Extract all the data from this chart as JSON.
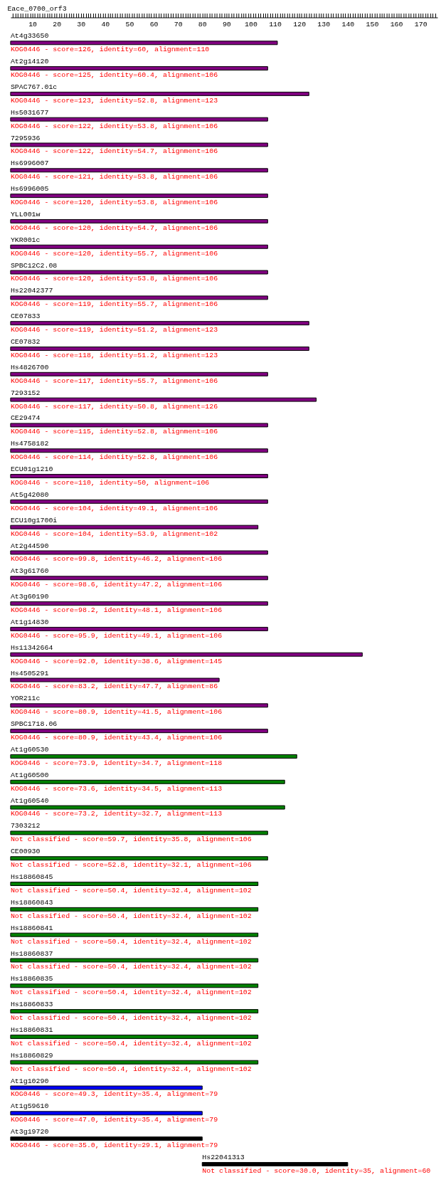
{
  "chart_data": {
    "type": "bar",
    "orientation": "horizontal",
    "title": "Eace_0700_orf3",
    "categories": [
      "At4g33650",
      "At2g14120",
      "SPAC767.01c",
      "Hs5031677",
      "7295936",
      "Hs6996007",
      "Hs6996005",
      "YLL001w",
      "YKR001c",
      "SPBC12C2.08",
      "Hs22042377",
      "CE07833",
      "CE07832",
      "Hs4826700",
      "7293152",
      "CE29474",
      "Hs4758182",
      "ECU01g1210",
      "At5g42080",
      "ECU10g1700i",
      "At2g44590",
      "At3g61760",
      "At3g60190",
      "At1g14830",
      "Hs11342664",
      "Hs4505291",
      "YOR211c",
      "SPBC1718.06",
      "At1g60530",
      "At1g60500",
      "At1g60540",
      "7303212",
      "CE00930",
      "Hs18860845",
      "Hs18860843",
      "Hs18860841",
      "Hs18860837",
      "Hs18860835",
      "Hs18860833",
      "Hs18860831",
      "Hs18860829",
      "At1g10290",
      "At1g59610",
      "At3g19720",
      "Hs22041313"
    ],
    "base": [
      1,
      1,
      1,
      1,
      1,
      1,
      1,
      1,
      1,
      1,
      1,
      1,
      1,
      1,
      1,
      1,
      1,
      1,
      1,
      1,
      1,
      1,
      1,
      1,
      1,
      1,
      1,
      1,
      1,
      1,
      1,
      1,
      1,
      1,
      1,
      1,
      1,
      1,
      1,
      1,
      1,
      1,
      1,
      1,
      80
    ],
    "values": [
      110,
      106,
      123,
      106,
      106,
      106,
      106,
      106,
      106,
      106,
      106,
      123,
      123,
      106,
      126,
      106,
      106,
      106,
      106,
      102,
      106,
      106,
      106,
      106,
      145,
      86,
      106,
      106,
      118,
      113,
      113,
      106,
      106,
      102,
      102,
      102,
      102,
      102,
      102,
      102,
      102,
      79,
      79,
      79,
      60
    ],
    "colors": [
      "#800080",
      "#800080",
      "#800080",
      "#800080",
      "#800080",
      "#800080",
      "#800080",
      "#800080",
      "#800080",
      "#800080",
      "#800080",
      "#800080",
      "#800080",
      "#800080",
      "#800080",
      "#800080",
      "#800080",
      "#800080",
      "#800080",
      "#800080",
      "#800080",
      "#800080",
      "#800080",
      "#800080",
      "#800080",
      "#800080",
      "#800080",
      "#800080",
      "#008000",
      "#008000",
      "#008000",
      "#008000",
      "#008000",
      "#008000",
      "#008000",
      "#008000",
      "#008000",
      "#008000",
      "#008000",
      "#008000",
      "#008000",
      "#0000ff",
      "#0000ff",
      "#000000",
      "#000000"
    ],
    "value_labels": [
      "KOG0446 - score=126, identity=60, alignment=110",
      "KOG0446 - score=125, identity=60.4, alignment=106",
      "KOG0446 - score=123, identity=52.8, alignment=123",
      "KOG0446 - score=122, identity=53.8, alignment=106",
      "KOG0446 - score=122, identity=54.7, alignment=106",
      "KOG0446 - score=121, identity=53.8, alignment=106",
      "KOG0446 - score=120, identity=53.8, alignment=106",
      "KOG0446 - score=120, identity=54.7, alignment=106",
      "KOG0446 - score=120, identity=55.7, alignment=106",
      "KOG0446 - score=120, identity=53.8, alignment=106",
      "KOG0446 - score=119, identity=55.7, alignment=106",
      "KOG0446 - score=119, identity=51.2, alignment=123",
      "KOG0446 - score=118, identity=51.2, alignment=123",
      "KOG0446 - score=117, identity=55.7, alignment=106",
      "KOG0446 - score=117, identity=50.8, alignment=126",
      "KOG0446 - score=115, identity=52.8, alignment=106",
      "KOG0446 - score=114, identity=52.8, alignment=106",
      "KOG0446 - score=110, identity=50, alignment=106",
      "KOG0446 - score=104, identity=49.1, alignment=106",
      "KOG0446 - score=104, identity=53.9, alignment=102",
      "KOG0446 - score=99.8, identity=46.2, alignment=106",
      "KOG0446 - score=98.6, identity=47.2, alignment=106",
      "KOG0446 - score=98.2, identity=48.1, alignment=106",
      "KOG0446 - score=95.9, identity=49.1, alignment=106",
      "KOG0446 - score=92.0, identity=38.6, alignment=145",
      "KOG0446 - score=83.2, identity=47.7, alignment=86",
      "KOG0446 - score=80.9, identity=41.5, alignment=106",
      "KOG0446 - score=80.9, identity=43.4, alignment=106",
      "KOG0446 - score=73.9, identity=34.7, alignment=118",
      "KOG0446 - score=73.6, identity=34.5, alignment=113",
      "KOG0446 - score=73.2, identity=32.7, alignment=113",
      "Not classified - score=59.7, identity=35.8, alignment=106",
      "Not classified - score=52.8, identity=32.1, alignment=106",
      "Not classified - score=50.4, identity=32.4, alignment=102",
      "Not classified - score=50.4, identity=32.4, alignment=102",
      "Not classified - score=50.4, identity=32.4, alignment=102",
      "Not classified - score=50.4, identity=32.4, alignment=102",
      "Not classified - score=50.4, identity=32.4, alignment=102",
      "Not classified - score=50.4, identity=32.4, alignment=102",
      "Not classified - score=50.4, identity=32.4, alignment=102",
      "Not classified - score=50.4, identity=32.4, alignment=102",
      "KOG0446 - score=49.3, identity=35.4, alignment=79",
      "KOG0446 - score=47.0, identity=35.4, alignment=79",
      "KOG0446 - score=35.0, identity=29.1, alignment=79",
      "Not classified - score=30.0, identity=35, alignment=60"
    ],
    "xlim": [
      1,
      177
    ],
    "xticks": [
      {
        "value": 2,
        "label": null
      },
      {
        "value": 3,
        "label": null
      },
      {
        "value": 4,
        "label": null
      },
      {
        "value": 5,
        "label": null
      },
      {
        "value": 6,
        "label": null
      },
      {
        "value": 7,
        "label": null
      },
      {
        "value": 8,
        "label": null
      },
      {
        "value": 9,
        "label": null
      },
      10,
      {
        "value": 11,
        "label": null
      },
      {
        "value": 12,
        "label": null
      },
      {
        "value": 13,
        "label": null
      },
      {
        "value": 14,
        "label": null
      },
      {
        "value": 15,
        "label": null
      },
      {
        "value": 16,
        "label": null
      },
      {
        "value": 17,
        "label": null
      },
      {
        "value": 18,
        "label": null
      },
      {
        "value": 19,
        "label": null
      },
      20,
      {
        "value": 21,
        "label": null
      },
      {
        "value": 22,
        "label": null
      },
      {
        "value": 23,
        "label": null
      },
      {
        "value": 24,
        "label": null
      },
      {
        "value": 25,
        "label": null
      },
      {
        "value": 26,
        "label": null
      },
      {
        "value": 27,
        "label": null
      },
      {
        "value": 28,
        "label": null
      },
      {
        "value": 29,
        "label": null
      },
      30,
      {
        "value": 31,
        "label": null
      },
      {
        "value": 32,
        "label": null
      },
      {
        "value": 33,
        "label": null
      },
      {
        "value": 34,
        "label": null
      },
      {
        "value": 35,
        "label": null
      },
      {
        "value": 36,
        "label": null
      },
      {
        "value": 37,
        "label": null
      },
      {
        "value": 38,
        "label": null
      },
      {
        "value": 39,
        "label": null
      },
      40,
      {
        "value": 41,
        "label": null
      },
      {
        "value": 42,
        "label": null
      },
      {
        "value": 43,
        "label": null
      },
      {
        "value": 44,
        "label": null
      },
      {
        "value": 45,
        "label": null
      },
      {
        "value": 46,
        "label": null
      },
      {
        "value": 47,
        "label": null
      },
      {
        "value": 48,
        "label": null
      },
      {
        "value": 49,
        "label": null
      },
      50,
      {
        "value": 51,
        "label": null
      },
      {
        "value": 52,
        "label": null
      },
      {
        "value": 53,
        "label": null
      },
      {
        "value": 54,
        "label": null
      },
      {
        "value": 55,
        "label": null
      },
      {
        "value": 56,
        "label": null
      },
      {
        "value": 57,
        "label": null
      },
      {
        "value": 58,
        "label": null
      },
      {
        "value": 59,
        "label": null
      },
      60,
      {
        "value": 61,
        "label": null
      },
      {
        "value": 62,
        "label": null
      },
      {
        "value": 63,
        "label": null
      },
      {
        "value": 64,
        "label": null
      },
      {
        "value": 65,
        "label": null
      },
      {
        "value": 66,
        "label": null
      },
      {
        "value": 67,
        "label": null
      },
      {
        "value": 68,
        "label": null
      },
      {
        "value": 69,
        "label": null
      },
      70,
      {
        "value": 71,
        "label": null
      },
      {
        "value": 72,
        "label": null
      },
      {
        "value": 73,
        "label": null
      },
      {
        "value": 74,
        "label": null
      },
      {
        "value": 75,
        "label": null
      },
      {
        "value": 76,
        "label": null
      },
      {
        "value": 77,
        "label": null
      },
      {
        "value": 78,
        "label": null
      },
      {
        "value": 79,
        "label": null
      },
      80,
      {
        "value": 81,
        "label": null
      },
      {
        "value": 82,
        "label": null
      },
      {
        "value": 83,
        "label": null
      },
      {
        "value": 84,
        "label": null
      },
      {
        "value": 85,
        "label": null
      },
      {
        "value": 86,
        "label": null
      },
      {
        "value": 87,
        "label": null
      },
      {
        "value": 88,
        "label": null
      },
      {
        "value": 89,
        "label": null
      },
      90,
      {
        "value": 91,
        "label": null
      },
      {
        "value": 92,
        "label": null
      },
      {
        "value": 93,
        "label": null
      },
      {
        "value": 94,
        "label": null
      },
      {
        "value": 95,
        "label": null
      },
      {
        "value": 96,
        "label": null
      },
      {
        "value": 97,
        "label": null
      },
      {
        "value": 98,
        "label": null
      },
      {
        "value": 99,
        "label": null
      },
      100,
      {
        "value": 101,
        "label": null
      },
      {
        "value": 102,
        "label": null
      },
      {
        "value": 103,
        "label": null
      },
      {
        "value": 104,
        "label": null
      },
      {
        "value": 105,
        "label": null
      },
      {
        "value": 106,
        "label": null
      },
      {
        "value": 107,
        "label": null
      },
      {
        "value": 108,
        "label": null
      },
      {
        "value": 109,
        "label": null
      },
      110,
      {
        "value": 111,
        "label": null
      },
      {
        "value": 112,
        "label": null
      },
      {
        "value": 113,
        "label": null
      },
      {
        "value": 114,
        "label": null
      },
      {
        "value": 115,
        "label": null
      },
      {
        "value": 116,
        "label": null
      },
      {
        "value": 117,
        "label": null
      },
      {
        "value": 118,
        "label": null
      },
      {
        "value": 119,
        "label": null
      },
      120,
      {
        "value": 121,
        "label": null
      },
      {
        "value": 122,
        "label": null
      },
      {
        "value": 123,
        "label": null
      },
      {
        "value": 124,
        "label": null
      },
      {
        "value": 125,
        "label": null
      },
      {
        "value": 126,
        "label": null
      },
      {
        "value": 127,
        "label": null
      },
      {
        "value": 128,
        "label": null
      },
      {
        "value": 129,
        "label": null
      },
      130,
      {
        "value": 131,
        "label": null
      },
      {
        "value": 132,
        "label": null
      },
      {
        "value": 133,
        "label": null
      },
      {
        "value": 134,
        "label": null
      },
      {
        "value": 135,
        "label": null
      },
      {
        "value": 136,
        "label": null
      },
      {
        "value": 137,
        "label": null
      },
      {
        "value": 138,
        "label": null
      },
      {
        "value": 139,
        "label": null
      },
      140,
      {
        "value": 141,
        "label": null
      },
      {
        "value": 142,
        "label": null
      },
      {
        "value": 143,
        "label": null
      },
      {
        "value": 144,
        "label": null
      },
      {
        "value": 145,
        "label": null
      },
      {
        "value": 146,
        "label": null
      },
      {
        "value": 147,
        "label": null
      },
      {
        "value": 148,
        "label": null
      },
      {
        "value": 149,
        "label": null
      },
      150,
      {
        "value": 151,
        "label": null
      },
      {
        "value": 152,
        "label": null
      },
      {
        "value": 153,
        "label": null
      },
      {
        "value": 154,
        "label": null
      },
      {
        "value": 155,
        "label": null
      },
      {
        "value": 156,
        "label": null
      },
      {
        "value": 157,
        "label": null
      },
      {
        "value": 158,
        "label": null
      },
      {
        "value": 159,
        "label": null
      },
      160,
      {
        "value": 161,
        "label": null
      },
      {
        "value": 162,
        "label": null
      },
      {
        "value": 163,
        "label": null
      },
      {
        "value": 164,
        "label": null
      },
      {
        "value": 165,
        "label": null
      },
      {
        "value": 166,
        "label": null
      },
      {
        "value": 167,
        "label": null
      },
      {
        "value": 168,
        "label": null
      },
      {
        "value": 169,
        "label": null
      },
      170,
      {
        "value": 171,
        "label": null
      },
      {
        "value": 172,
        "label": null
      },
      {
        "value": 173,
        "label": null
      },
      {
        "value": 174,
        "label": null
      },
      {
        "value": 175,
        "label": null
      },
      {
        "value": 176,
        "label": null
      }
    ],
    "legend": false,
    "grid": false
  }
}
